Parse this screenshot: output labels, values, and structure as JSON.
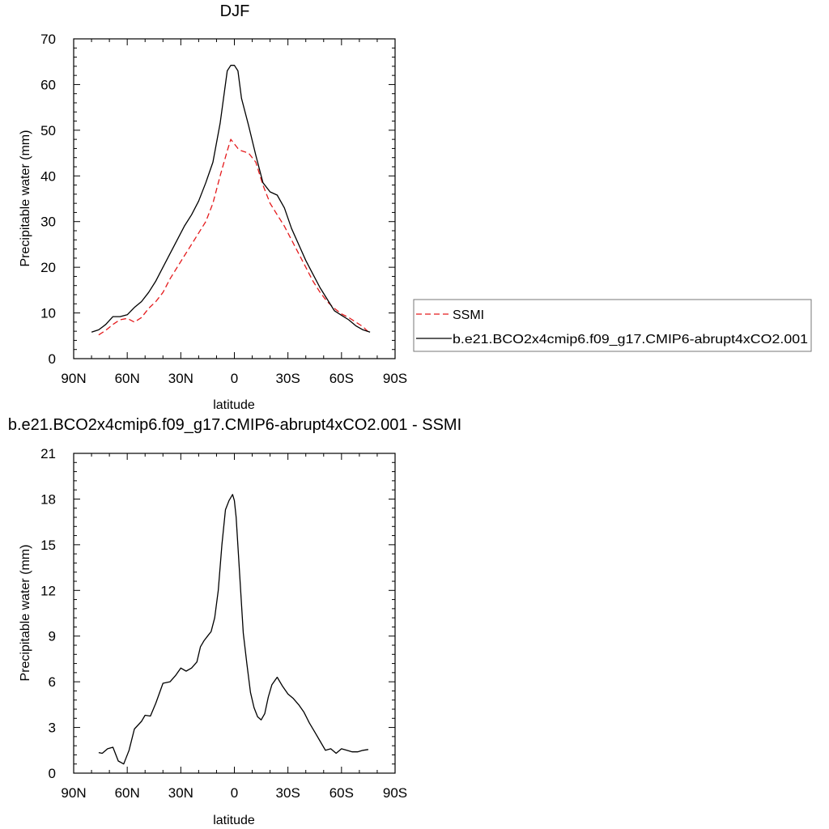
{
  "chart_data": [
    {
      "type": "line",
      "title": "DJF",
      "xlabel": "latitude",
      "ylabel": "Precipitable water (mm)",
      "xlim": [
        90,
        -90
      ],
      "ylim": [
        0,
        70
      ],
      "xticks": [
        90,
        60,
        30,
        0,
        -30,
        -60,
        -90
      ],
      "xtick_labels": [
        "90N",
        "60N",
        "30N",
        "0",
        "30S",
        "60S",
        "90S"
      ],
      "yticks": [
        0,
        10,
        20,
        30,
        40,
        50,
        60,
        70
      ],
      "ytick_labels": [
        "0",
        "10",
        "20",
        "30",
        "40",
        "50",
        "60",
        "70"
      ],
      "grid": false,
      "legend_position": "right",
      "series": [
        {
          "name": "SSMI",
          "color": "#e41a1c",
          "dash": "dashed",
          "x": [
            76,
            72,
            68,
            64,
            60,
            56,
            52,
            48,
            44,
            40,
            36,
            32,
            28,
            24,
            20,
            16,
            12,
            8,
            4,
            2,
            0,
            -2,
            -4,
            -8,
            -12,
            -16,
            -20,
            -24,
            -28,
            -32,
            -36,
            -40,
            -44,
            -48,
            -52,
            -56,
            -60,
            -64,
            -68,
            -72,
            -76
          ],
          "y": [
            5.2,
            6.2,
            7.5,
            8.5,
            8.8,
            8.0,
            9.0,
            11.0,
            12.5,
            14.5,
            17.5,
            20.0,
            22.5,
            25.0,
            27.5,
            30.0,
            34.0,
            40.0,
            45.5,
            48.0,
            47.0,
            46.0,
            45.5,
            45.0,
            43.0,
            38.0,
            34.0,
            31.5,
            29.0,
            26.0,
            23.0,
            20.0,
            17.0,
            14.5,
            12.5,
            11.0,
            9.8,
            9.0,
            8.0,
            7.0,
            5.5
          ]
        },
        {
          "name": "b.e21.BCO2x4cmip6.f09_g17.CMIP6-abrupt4xCO2.001",
          "color": "#000000",
          "dash": "solid",
          "x": [
            80,
            76,
            72,
            68,
            64,
            60,
            56,
            52,
            48,
            44,
            40,
            36,
            32,
            28,
            24,
            20,
            16,
            12,
            8,
            4,
            2,
            0,
            -2,
            -4,
            -8,
            -12,
            -16,
            -20,
            -24,
            -28,
            -32,
            -36,
            -40,
            -44,
            -48,
            -52,
            -56,
            -60,
            -64,
            -68,
            -72,
            -76
          ],
          "y": [
            5.8,
            6.3,
            7.5,
            9.2,
            9.2,
            9.6,
            11.2,
            12.5,
            14.5,
            17.0,
            20.0,
            23.0,
            26.0,
            29.0,
            31.5,
            34.5,
            38.5,
            43.0,
            51.5,
            63.0,
            64.2,
            64.2,
            63.0,
            57.0,
            51.0,
            44.5,
            38.5,
            36.5,
            35.8,
            33.0,
            28.5,
            25.0,
            21.5,
            18.5,
            15.5,
            13.0,
            10.5,
            9.5,
            8.5,
            7.2,
            6.3,
            5.8
          ]
        }
      ]
    },
    {
      "type": "line",
      "title": "b.e21.BCO2x4cmip6.f09_g17.CMIP6-abrupt4xCO2.001 - SSMI",
      "xlabel": "latitude",
      "ylabel": "Precipitable water (mm)",
      "xlim": [
        90,
        -90
      ],
      "ylim": [
        0,
        21
      ],
      "xticks": [
        90,
        60,
        30,
        0,
        -30,
        -60,
        -90
      ],
      "xtick_labels": [
        "90N",
        "60N",
        "30N",
        "0",
        "30S",
        "60S",
        "90S"
      ],
      "yticks": [
        0,
        3,
        6,
        9,
        12,
        15,
        18,
        21
      ],
      "ytick_labels": [
        "0",
        "3",
        "6",
        "9",
        "12",
        "15",
        "18",
        "21"
      ],
      "grid": false,
      "series": [
        {
          "color": "#000000",
          "dash": "solid",
          "x": [
            76,
            74,
            71,
            68,
            65,
            62,
            59,
            56,
            52,
            50,
            47,
            44,
            40,
            36,
            33,
            30,
            27,
            24,
            21,
            19,
            17,
            15,
            13,
            11,
            9,
            7,
            5,
            3,
            1,
            0,
            -1,
            -3,
            -5,
            -7,
            -9,
            -11,
            -13,
            -15,
            -17,
            -19,
            -21,
            -24,
            -27,
            -30,
            -33,
            -36,
            -39,
            -42,
            -45,
            -48,
            -51,
            -54,
            -57,
            -60,
            -63,
            -66,
            -69,
            -72,
            -75
          ],
          "y": [
            1.35,
            1.3,
            1.6,
            1.7,
            0.8,
            0.6,
            1.5,
            2.9,
            3.4,
            3.8,
            3.75,
            4.6,
            5.9,
            6.0,
            6.4,
            6.9,
            6.7,
            6.9,
            7.3,
            8.3,
            8.7,
            9.0,
            9.3,
            10.2,
            12.0,
            15.0,
            17.3,
            17.9,
            18.3,
            17.9,
            16.8,
            13.0,
            9.2,
            7.2,
            5.3,
            4.3,
            3.7,
            3.5,
            3.9,
            5.0,
            5.8,
            6.3,
            5.7,
            5.2,
            4.9,
            4.5,
            4.0,
            3.3,
            2.7,
            2.1,
            1.5,
            1.6,
            1.3,
            1.6,
            1.5,
            1.4,
            1.4,
            1.5,
            1.55
          ]
        }
      ]
    }
  ]
}
